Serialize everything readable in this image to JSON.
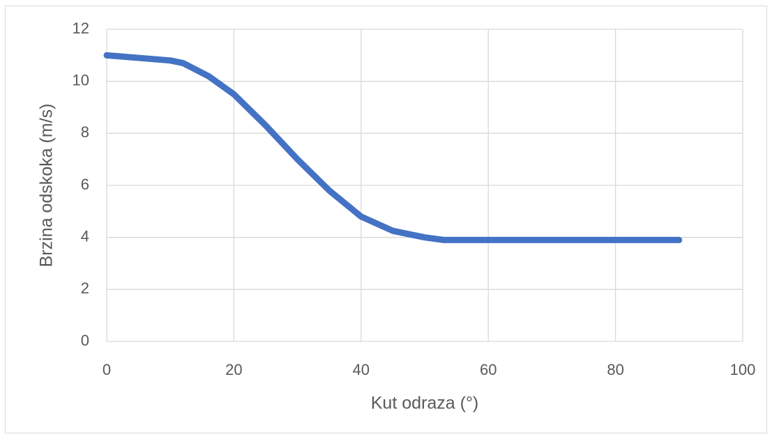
{
  "chart_data": {
    "type": "line",
    "x_label": "Kut odraza (°)",
    "y_label": "Brzina odskoka (m/s)",
    "series": [
      {
        "name": "Brzina odskoka",
        "color": "#4472c4",
        "x": [
          0,
          5,
          10,
          12,
          16,
          20,
          25,
          30,
          35,
          40,
          45,
          50,
          53,
          60,
          70,
          80,
          90
        ],
        "values": [
          11,
          10.9,
          10.8,
          10.7,
          10.2,
          9.5,
          8.3,
          7.0,
          5.8,
          4.8,
          4.25,
          4.0,
          3.9,
          3.9,
          3.9,
          3.9,
          3.9
        ]
      }
    ],
    "xlim": [
      0,
      100
    ],
    "xticks": [
      0,
      20,
      40,
      60,
      80,
      100
    ],
    "ylim": [
      0,
      12
    ],
    "yticks": [
      0,
      2,
      4,
      6,
      8,
      10,
      12
    ],
    "grid": true
  }
}
